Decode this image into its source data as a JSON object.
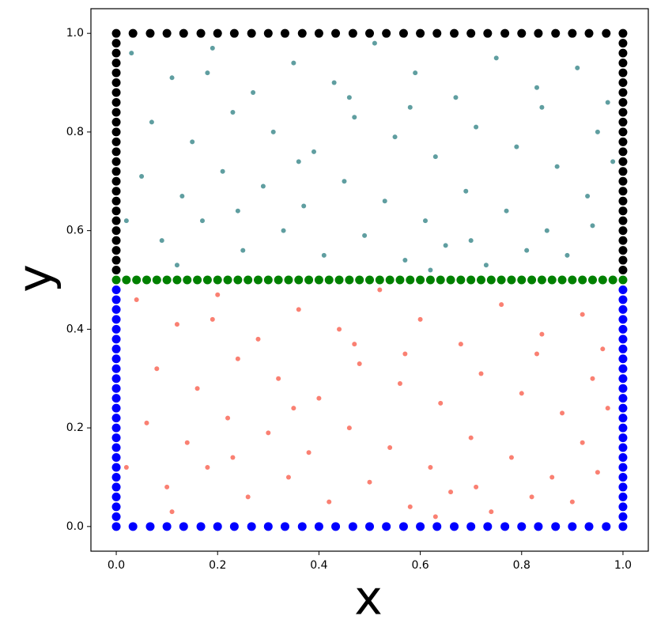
{
  "chart_data": {
    "type": "scatter",
    "xlabel": "x",
    "ylabel": "y",
    "xlim": [
      -0.05,
      1.05
    ],
    "ylim": [
      -0.05,
      1.05
    ],
    "xticks": [
      {
        "value": 0,
        "label": "0.0"
      },
      0.2,
      0.4,
      0.6,
      0.8,
      {
        "value": 1,
        "label": "1.0"
      }
    ],
    "yticks": [
      {
        "value": 0,
        "label": "0.0"
      },
      0.2,
      0.4,
      0.6,
      0.8,
      {
        "value": 1,
        "label": "1.0"
      }
    ],
    "series": [
      {
        "color": "#5f9ea0",
        "x": [
          0.03,
          0.11,
          0.19,
          0.27,
          0.35,
          0.43,
          0.51,
          0.59,
          0.67,
          0.75,
          0.83,
          0.91,
          0.97,
          0.07,
          0.15,
          0.23,
          0.31,
          0.39,
          0.47,
          0.55,
          0.63,
          0.71,
          0.79,
          0.87,
          0.95,
          0.05,
          0.13,
          0.21,
          0.29,
          0.37,
          0.45,
          0.53,
          0.61,
          0.69,
          0.77,
          0.85,
          0.93,
          0.09,
          0.17,
          0.25,
          0.33,
          0.41,
          0.49,
          0.57,
          0.65,
          0.73,
          0.81,
          0.89,
          0.02,
          0.98,
          0.12,
          0.36,
          0.58,
          0.84,
          0.24,
          0.46,
          0.7,
          0.94,
          0.18,
          0.62
        ],
        "y": [
          0.96,
          0.91,
          0.97,
          0.88,
          0.94,
          0.9,
          0.98,
          0.92,
          0.87,
          0.95,
          0.89,
          0.93,
          0.86,
          0.82,
          0.78,
          0.84,
          0.8,
          0.76,
          0.83,
          0.79,
          0.75,
          0.81,
          0.77,
          0.73,
          0.8,
          0.71,
          0.67,
          0.72,
          0.69,
          0.65,
          0.7,
          0.66,
          0.62,
          0.68,
          0.64,
          0.6,
          0.67,
          0.58,
          0.62,
          0.56,
          0.6,
          0.55,
          0.59,
          0.54,
          0.57,
          0.53,
          0.56,
          0.55,
          0.62,
          0.74,
          0.53,
          0.74,
          0.85,
          0.85,
          0.64,
          0.87,
          0.58,
          0.61,
          0.92,
          0.52
        ]
      },
      {
        "color": "#fa8072",
        "x": [
          0.04,
          0.12,
          0.2,
          0.28,
          0.36,
          0.44,
          0.52,
          0.6,
          0.68,
          0.76,
          0.84,
          0.92,
          0.96,
          0.08,
          0.16,
          0.24,
          0.32,
          0.4,
          0.48,
          0.56,
          0.64,
          0.72,
          0.8,
          0.88,
          0.94,
          0.06,
          0.14,
          0.22,
          0.3,
          0.38,
          0.46,
          0.54,
          0.62,
          0.7,
          0.78,
          0.86,
          0.92,
          0.1,
          0.18,
          0.26,
          0.34,
          0.42,
          0.5,
          0.58,
          0.66,
          0.74,
          0.82,
          0.9,
          0.02,
          0.97,
          0.11,
          0.35,
          0.57,
          0.83,
          0.23,
          0.47,
          0.71,
          0.95,
          0.19,
          0.63
        ],
        "y": [
          0.46,
          0.41,
          0.47,
          0.38,
          0.44,
          0.4,
          0.48,
          0.42,
          0.37,
          0.45,
          0.39,
          0.43,
          0.36,
          0.32,
          0.28,
          0.34,
          0.3,
          0.26,
          0.33,
          0.29,
          0.25,
          0.31,
          0.27,
          0.23,
          0.3,
          0.21,
          0.17,
          0.22,
          0.19,
          0.15,
          0.2,
          0.16,
          0.12,
          0.18,
          0.14,
          0.1,
          0.17,
          0.08,
          0.12,
          0.06,
          0.1,
          0.05,
          0.09,
          0.04,
          0.07,
          0.03,
          0.06,
          0.05,
          0.12,
          0.24,
          0.03,
          0.24,
          0.35,
          0.35,
          0.14,
          0.37,
          0.08,
          0.11,
          0.42,
          0.02
        ]
      },
      {
        "color": "#000000",
        "x": [
          0,
          0.033,
          0.067,
          0.1,
          0.133,
          0.167,
          0.2,
          0.233,
          0.267,
          0.3,
          0.333,
          0.367,
          0.4,
          0.433,
          0.467,
          0.5,
          0.533,
          0.567,
          0.6,
          0.633,
          0.667,
          0.7,
          0.733,
          0.767,
          0.8,
          0.833,
          0.867,
          0.9,
          0.933,
          0.967,
          1,
          0,
          0,
          0,
          0,
          0,
          0,
          0,
          0,
          0,
          0,
          0,
          0,
          0,
          0,
          0,
          0,
          0,
          0,
          0,
          0,
          0,
          0,
          0,
          0,
          1,
          1,
          1,
          1,
          1,
          1,
          1,
          1,
          1,
          1,
          1,
          1,
          1,
          1,
          1,
          1,
          1,
          1,
          1,
          1,
          1,
          1,
          1,
          1
        ],
        "y": [
          1,
          1,
          1,
          1,
          1,
          1,
          1,
          1,
          1,
          1,
          1,
          1,
          1,
          1,
          1,
          1,
          1,
          1,
          1,
          1,
          1,
          1,
          1,
          1,
          1,
          1,
          1,
          1,
          1,
          1,
          1,
          0.52,
          0.54,
          0.56,
          0.58,
          0.6,
          0.62,
          0.64,
          0.66,
          0.68,
          0.7,
          0.72,
          0.74,
          0.76,
          0.78,
          0.8,
          0.82,
          0.84,
          0.86,
          0.88,
          0.9,
          0.92,
          0.94,
          0.96,
          0.98,
          0.52,
          0.54,
          0.56,
          0.58,
          0.6,
          0.62,
          0.64,
          0.66,
          0.68,
          0.7,
          0.72,
          0.74,
          0.76,
          0.78,
          0.8,
          0.82,
          0.84,
          0.86,
          0.88,
          0.9,
          0.92,
          0.94,
          0.96,
          0.98
        ]
      },
      {
        "color": "#0000ff",
        "x": [
          0,
          0.033,
          0.067,
          0.1,
          0.133,
          0.167,
          0.2,
          0.233,
          0.267,
          0.3,
          0.333,
          0.367,
          0.4,
          0.433,
          0.467,
          0.5,
          0.533,
          0.567,
          0.6,
          0.633,
          0.667,
          0.7,
          0.733,
          0.767,
          0.8,
          0.833,
          0.867,
          0.9,
          0.933,
          0.967,
          1,
          0,
          0,
          0,
          0,
          0,
          0,
          0,
          0,
          0,
          0,
          0,
          0,
          0,
          0,
          0,
          0,
          0,
          0,
          0,
          0,
          0,
          0,
          0,
          0,
          1,
          1,
          1,
          1,
          1,
          1,
          1,
          1,
          1,
          1,
          1,
          1,
          1,
          1,
          1,
          1,
          1,
          1,
          1,
          1,
          1,
          1,
          1,
          1
        ],
        "y": [
          0,
          0,
          0,
          0,
          0,
          0,
          0,
          0,
          0,
          0,
          0,
          0,
          0,
          0,
          0,
          0,
          0,
          0,
          0,
          0,
          0,
          0,
          0,
          0,
          0,
          0,
          0,
          0,
          0,
          0,
          0,
          0.02,
          0.04,
          0.06,
          0.08,
          0.1,
          0.12,
          0.14,
          0.16,
          0.18,
          0.2,
          0.22,
          0.24,
          0.26,
          0.28,
          0.3,
          0.32,
          0.34,
          0.36,
          0.38,
          0.4,
          0.42,
          0.44,
          0.46,
          0.48,
          0.02,
          0.04,
          0.06,
          0.08,
          0.1,
          0.12,
          0.14,
          0.16,
          0.18,
          0.2,
          0.22,
          0.24,
          0.26,
          0.28,
          0.3,
          0.32,
          0.34,
          0.36,
          0.38,
          0.4,
          0.42,
          0.44,
          0.46,
          0.48
        ]
      },
      {
        "color": "#008000",
        "x": [
          0,
          0.02,
          0.04,
          0.06,
          0.08,
          0.1,
          0.12,
          0.14,
          0.16,
          0.18,
          0.2,
          0.22,
          0.24,
          0.26,
          0.28,
          0.3,
          0.32,
          0.34,
          0.36,
          0.38,
          0.4,
          0.42,
          0.44,
          0.46,
          0.48,
          0.5,
          0.52,
          0.54,
          0.56,
          0.58,
          0.6,
          0.62,
          0.64,
          0.66,
          0.68,
          0.7,
          0.72,
          0.74,
          0.76,
          0.78,
          0.8,
          0.82,
          0.84,
          0.86,
          0.88,
          0.9,
          0.92,
          0.94,
          0.96,
          0.98,
          1
        ],
        "y": [
          0.5,
          0.5,
          0.5,
          0.5,
          0.5,
          0.5,
          0.5,
          0.5,
          0.5,
          0.5,
          0.5,
          0.5,
          0.5,
          0.5,
          0.5,
          0.5,
          0.5,
          0.5,
          0.5,
          0.5,
          0.5,
          0.5,
          0.5,
          0.5,
          0.5,
          0.5,
          0.5,
          0.5,
          0.5,
          0.5,
          0.5,
          0.5,
          0.5,
          0.5,
          0.5,
          0.5,
          0.5,
          0.5,
          0.5,
          0.5,
          0.5,
          0.5,
          0.5,
          0.5,
          0.5,
          0.5,
          0.5,
          0.5,
          0.5,
          0.5,
          0.5
        ]
      }
    ]
  }
}
